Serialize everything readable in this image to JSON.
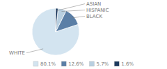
{
  "chart_data": {
    "type": "pie",
    "categories": [
      "WHITE",
      "BLACK",
      "HISPANIC",
      "ASIAN"
    ],
    "values": [
      80.1,
      12.6,
      5.7,
      1.6
    ],
    "value_labels": [
      "80.1%",
      "12.6%",
      "5.7%",
      "1.6%"
    ],
    "colors": [
      "#d3e4f0",
      "#5b7fa6",
      "#b8cfe0",
      "#1c3a5e"
    ],
    "legend": "bottom"
  }
}
